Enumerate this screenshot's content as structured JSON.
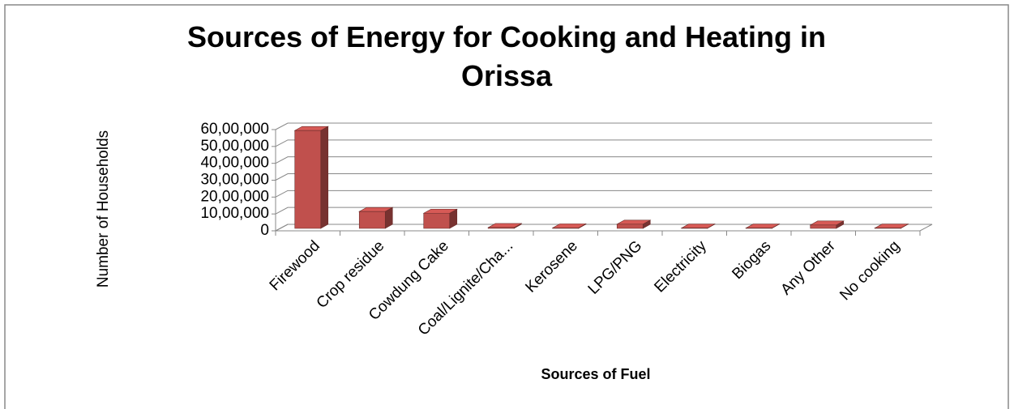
{
  "chart_data": {
    "type": "bar",
    "title": "Sources of Energy for Cooking and Heating in Orissa",
    "x_label": "Sources of Fuel",
    "y_label": "Number of Households",
    "categories": [
      "Firewood",
      "Crop residue",
      "Cowdung Cake",
      "Coal/Lignite/Cha...",
      "Kerosene",
      "LPG/PNG",
      "Electricity",
      "Biogas",
      "Any Other",
      "No cooking"
    ],
    "values": [
      5800000,
      1000000,
      900000,
      50000,
      30000,
      250000,
      20000,
      20000,
      200000,
      20000
    ],
    "color": "#c0504d",
    "ylim": [
      0,
      6000000
    ],
    "yticks": [
      0,
      {
        "value": 1000000,
        "label": "10,00,000"
      },
      {
        "value": 2000000,
        "label": "20,00,000"
      },
      {
        "value": 3000000,
        "label": "30,00,000"
      },
      {
        "value": 4000000,
        "label": "40,00,000"
      },
      {
        "value": 5000000,
        "label": "50,00,000"
      },
      {
        "value": 6000000,
        "label": "60,00,000"
      }
    ],
    "grid": true
  }
}
